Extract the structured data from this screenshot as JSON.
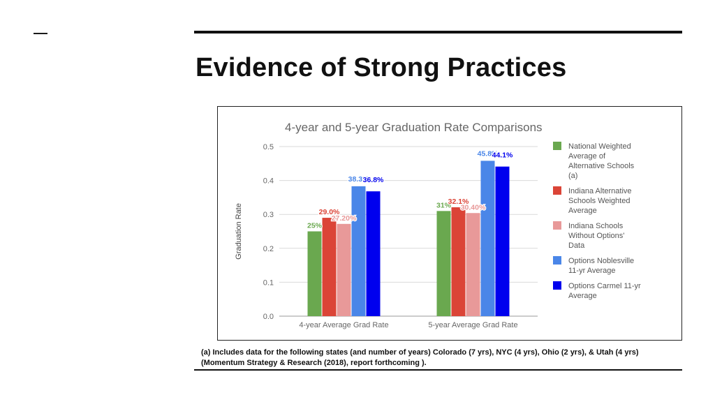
{
  "slide": {
    "title": "Evidence of Strong Practices",
    "footnote": "(a) Includes data for the following states (and number of years) Colorado (7 yrs), NYC (4 yrs), Ohio (2 yrs), & Utah (4 yrs) (Momentum Strategy & Research (2018), report forthcoming )."
  },
  "chart_data": {
    "type": "bar",
    "title": "4-year and 5-year Graduation Rate Comparisons",
    "xlabel": "",
    "ylabel": "Graduation Rate",
    "ylim": [
      0,
      0.5
    ],
    "yticks": [
      "0.0",
      "0.1",
      "0.2",
      "0.3",
      "0.4",
      "0.5"
    ],
    "grid": true,
    "legend_position": "right",
    "categories": [
      "4-year Average Grad Rate",
      "5-year Average Grad Rate"
    ],
    "series": [
      {
        "name": "National Weighted Average of Alternative Schools (a)",
        "color": "#6aa84f",
        "label_color": "#6aa84f",
        "values": [
          0.25,
          0.31
        ],
        "labels": [
          "25%",
          "31%"
        ]
      },
      {
        "name": "Indiana Alternative Schools Weighted Average",
        "color": "#db4437",
        "label_color": "#db4437",
        "values": [
          0.29,
          0.321
        ],
        "labels": [
          "29.0%",
          "32.1%"
        ]
      },
      {
        "name": "Indiana Schools Without Options' Data",
        "color": "#e89999",
        "label_color": "#e89999",
        "values": [
          0.272,
          0.304
        ],
        "labels": [
          "27.20%",
          "30.40%"
        ]
      },
      {
        "name": "Options Noblesville 11-yr Average",
        "color": "#4a86e8",
        "label_color": "#4a86e8",
        "values": [
          0.383,
          0.458
        ],
        "labels": [
          "38.3%",
          "45.8%"
        ]
      },
      {
        "name": "Options Carmel 11-yr Average",
        "color": "#0000ee",
        "label_color": "#0000ee",
        "values": [
          0.368,
          0.441
        ],
        "labels": [
          "36.8%",
          "44.1%"
        ]
      }
    ]
  }
}
